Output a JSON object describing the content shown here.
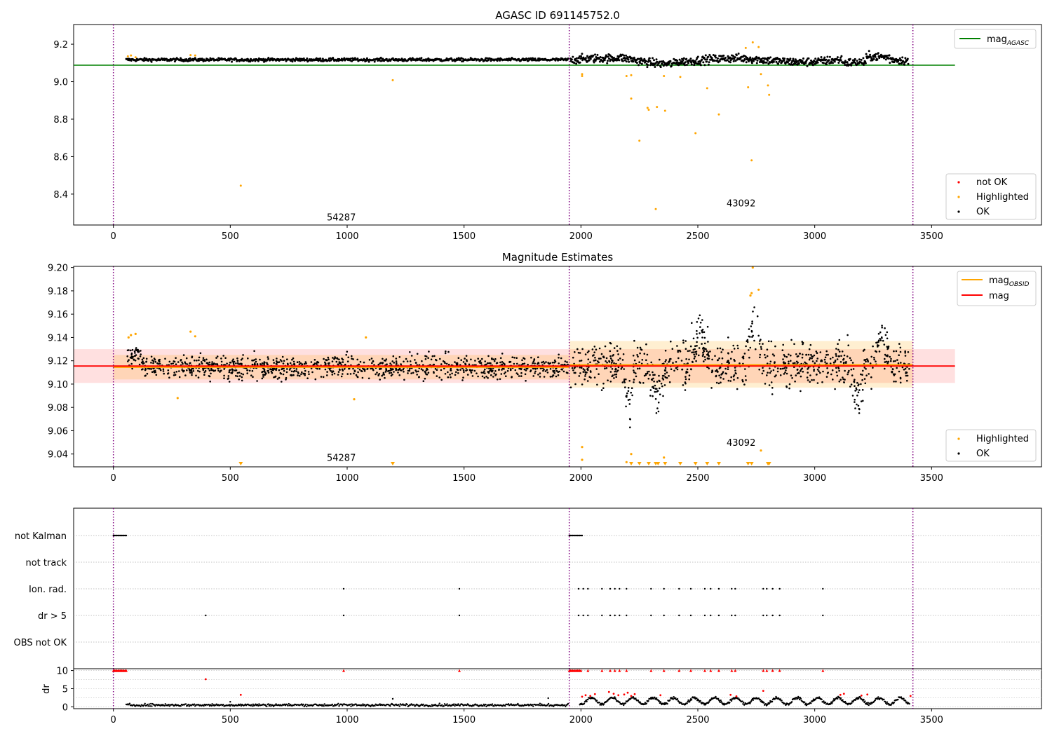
{
  "chart_data": [
    {
      "id": "agasc",
      "type": "scatter",
      "title": "AGASC ID 691145752.0",
      "xlim": [
        -170,
        3970
      ],
      "ylim": [
        8.235,
        9.305
      ],
      "yticks": [
        8.4,
        8.6,
        8.8,
        9.0,
        9.2
      ],
      "ytick_labels": [
        "8.4",
        "8.6",
        "8.8",
        "9.0",
        "9.2"
      ],
      "xticks": [
        0,
        500,
        1000,
        1500,
        2000,
        2500,
        3000,
        3500
      ],
      "xtick_labels": [
        "0",
        "500",
        "1000",
        "1500",
        "2000",
        "2500",
        "3000",
        "3500"
      ],
      "vlines": [
        0,
        1950,
        3420
      ],
      "obs_labels": [
        {
          "text": "54287",
          "x": 975,
          "y": 8.26
        },
        {
          "text": "43092",
          "x": 2685,
          "y": 8.335
        }
      ],
      "mag_agasc": {
        "value": 9.088,
        "x_range": [
          -170,
          3600
        ],
        "color": "#008000"
      },
      "legend_lines": [
        {
          "label": "mag",
          "sub": "AGASC",
          "color": "#008000"
        }
      ],
      "legend_points": [
        {
          "label": "not OK",
          "color": "#ff0000"
        },
        {
          "label": "Highlighted",
          "color": "#ffa500"
        },
        {
          "label": "OK",
          "color": "#000000"
        }
      ],
      "segments": [
        {
          "x0": 55,
          "x1": 1945,
          "mean": 9.117,
          "spread": 0.006,
          "n": 700
        },
        {
          "x0": 1955,
          "x1": 3400,
          "mean": 9.115,
          "spread": 0.016,
          "n": 700
        }
      ],
      "highlighted": [
        [
          62,
          9.135
        ],
        [
          75,
          9.14
        ],
        [
          95,
          9.13
        ],
        [
          330,
          9.142
        ],
        [
          350,
          9.14
        ],
        [
          545,
          8.445
        ],
        [
          1195,
          9.008
        ],
        [
          2005,
          9.04
        ],
        [
          2005,
          9.03
        ],
        [
          2195,
          9.03
        ],
        [
          2215,
          8.91
        ],
        [
          2215,
          9.035
        ],
        [
          2250,
          8.685
        ],
        [
          2285,
          8.86
        ],
        [
          2290,
          8.85
        ],
        [
          2320,
          8.32
        ],
        [
          2325,
          8.865
        ],
        [
          2355,
          9.03
        ],
        [
          2360,
          8.845
        ],
        [
          2425,
          9.025
        ],
        [
          2490,
          8.725
        ],
        [
          2540,
          8.965
        ],
        [
          2590,
          8.825
        ],
        [
          2705,
          9.18
        ],
        [
          2715,
          8.97
        ],
        [
          2730,
          8.58
        ],
        [
          2735,
          9.21
        ],
        [
          2760,
          9.185
        ],
        [
          2770,
          9.04
        ],
        [
          2800,
          8.98
        ],
        [
          2805,
          8.93
        ]
      ]
    },
    {
      "id": "estimates",
      "type": "scatter",
      "title": "Magnitude Estimates",
      "xlim": [
        -170,
        3970
      ],
      "ylim": [
        9.029,
        9.201
      ],
      "yticks": [
        9.04,
        9.06,
        9.08,
        9.1,
        9.12,
        9.14,
        9.16,
        9.18,
        9.2
      ],
      "ytick_labels": [
        "9.04",
        "9.06",
        "9.08",
        "9.10",
        "9.12",
        "9.14",
        "9.16",
        "9.18",
        "9.20"
      ],
      "xticks": [
        0,
        500,
        1000,
        1500,
        2000,
        2500,
        3000,
        3500
      ],
      "xtick_labels": [
        "0",
        "500",
        "1000",
        "1500",
        "2000",
        "2500",
        "3000",
        "3500"
      ],
      "vlines": [
        0,
        1950,
        3420
      ],
      "obs_labels": [
        {
          "text": "54287",
          "x": 975,
          "y": 9.034
        },
        {
          "text": "43092",
          "x": 2685,
          "y": 9.047
        }
      ],
      "mag": {
        "value": 9.1155,
        "band": [
          9.101,
          9.13
        ],
        "x_range": [
          -170,
          3600
        ],
        "color": "#ff0000"
      },
      "mag_obsid": [
        {
          "x0": 0,
          "x1": 1950,
          "value": 9.1145,
          "band": [
            9.104,
            9.125
          ]
        },
        {
          "x0": 1950,
          "x1": 3420,
          "value": 9.1165,
          "band": [
            9.097,
            9.137
          ]
        }
      ],
      "legend_lines": [
        {
          "label": "mag",
          "sub": "OBSID",
          "color": "#ffa500"
        },
        {
          "label": "mag",
          "sub": "",
          "color": "#ff0000"
        }
      ],
      "legend_points": [
        {
          "label": "Highlighted",
          "color": "#ffa500"
        },
        {
          "label": "OK",
          "color": "#000000"
        }
      ],
      "dips": [
        {
          "x0": 2180,
          "x1": 2230,
          "depth": 0.04
        },
        {
          "x0": 2280,
          "x1": 2370,
          "depth": 0.025
        },
        {
          "x0": 3150,
          "x1": 3220,
          "depth": 0.03
        }
      ],
      "bumps": [
        {
          "x0": 2460,
          "x1": 2560,
          "height": 0.028
        },
        {
          "x0": 2700,
          "x1": 2780,
          "height": 0.035
        },
        {
          "x0": 3240,
          "x1": 3330,
          "height": 0.025
        }
      ],
      "highlighted": [
        [
          65,
          9.14
        ],
        [
          75,
          9.142
        ],
        [
          95,
          9.143
        ],
        [
          275,
          9.088
        ],
        [
          330,
          9.145
        ],
        [
          350,
          9.141
        ],
        [
          1030,
          9.087
        ],
        [
          1080,
          9.14
        ],
        [
          2005,
          9.046
        ],
        [
          2005,
          9.035
        ],
        [
          2195,
          9.033
        ],
        [
          2215,
          9.04
        ],
        [
          2355,
          9.037
        ],
        [
          2725,
          9.176
        ],
        [
          2730,
          9.178
        ],
        [
          2735,
          9.2
        ],
        [
          2760,
          9.181
        ],
        [
          2770,
          9.043
        ]
      ],
      "lower_limits": [
        545,
        1195,
        2215,
        2250,
        2290,
        2320,
        2330,
        2360,
        2425,
        2490,
        2540,
        2590,
        2715,
        2730,
        2800,
        2805
      ]
    },
    {
      "id": "flags",
      "type": "scatter",
      "xlim": [
        -170,
        3970
      ],
      "categories": [
        "not Kalman",
        "not track",
        "Ion. rad.",
        "dr > 5",
        "OBS not OK"
      ],
      "rows": [
        {
          "label": "not Kalman",
          "x": [
            0,
            5,
            10,
            15,
            20,
            25,
            30,
            35,
            40,
            45,
            50,
            55,
            1950,
            1955,
            1960,
            1965,
            1970,
            1975,
            1980,
            1985,
            1990,
            1995,
            2000,
            2005
          ]
        },
        {
          "label": "not track",
          "x": []
        },
        {
          "label": "Ion. rad.",
          "x": [
            985,
            1480,
            1990,
            2010,
            2030,
            2090,
            2125,
            2145,
            2165,
            2195,
            2300,
            2355,
            2420,
            2470,
            2530,
            2555,
            2590,
            2645,
            2660,
            2780,
            2795,
            2820,
            2850,
            3035
          ]
        },
        {
          "label": "dr > 5",
          "x": [
            395,
            985,
            1480,
            1990,
            2010,
            2030,
            2090,
            2125,
            2145,
            2165,
            2195,
            2300,
            2355,
            2420,
            2470,
            2530,
            2555,
            2590,
            2645,
            2660,
            2780,
            2795,
            2820,
            2850,
            3035
          ]
        },
        {
          "label": "OBS not OK",
          "x": []
        }
      ],
      "vlines": [
        0,
        1950,
        3420
      ]
    },
    {
      "id": "dr",
      "type": "scatter",
      "xlim": [
        -170,
        3970
      ],
      "ylim": [
        -0.5,
        10.5
      ],
      "ylabel": "dr",
      "yticks": [
        0,
        5,
        10
      ],
      "ytick_labels": [
        "0",
        "5",
        "10"
      ],
      "xticks": [
        0,
        500,
        1000,
        1500,
        2000,
        2500,
        3000,
        3500
      ],
      "xtick_labels": [
        "0",
        "500",
        "1000",
        "1500",
        "2000",
        "2500",
        "3000",
        "3500"
      ],
      "vlines": [
        0,
        1950,
        3420
      ],
      "clipped_at_10": [
        0,
        5,
        10,
        15,
        20,
        25,
        30,
        35,
        40,
        45,
        50,
        55,
        985,
        1480,
        1950,
        1955,
        1960,
        1965,
        1970,
        1975,
        1980,
        1985,
        1990,
        1995,
        2000,
        2030,
        2090,
        2125,
        2145,
        2165,
        2195,
        2300,
        2355,
        2420,
        2470,
        2530,
        2555,
        2590,
        2645,
        2660,
        2780,
        2795,
        2820,
        2850,
        3035
      ],
      "red_points": [
        [
          395,
          7.6
        ],
        [
          545,
          3.3
        ],
        [
          2005,
          2.8
        ],
        [
          2020,
          3.2
        ],
        [
          2040,
          3.0
        ],
        [
          2060,
          3.5
        ],
        [
          2120,
          4.1
        ],
        [
          2140,
          3.6
        ],
        [
          2160,
          3.2
        ],
        [
          2185,
          3.4
        ],
        [
          2200,
          3.9
        ],
        [
          2215,
          3.0
        ],
        [
          2230,
          3.5
        ],
        [
          2340,
          3.2
        ],
        [
          2640,
          3.3
        ],
        [
          2665,
          2.9
        ],
        [
          2780,
          4.4
        ],
        [
          3110,
          3.3
        ],
        [
          3125,
          3.6
        ],
        [
          3200,
          3.1
        ],
        [
          3225,
          3.4
        ],
        [
          3410,
          3.0
        ]
      ],
      "black_points": [
        [
          1195,
          2.2
        ],
        [
          1860,
          2.4
        ],
        [
          500,
          1.4
        ]
      ]
    }
  ]
}
